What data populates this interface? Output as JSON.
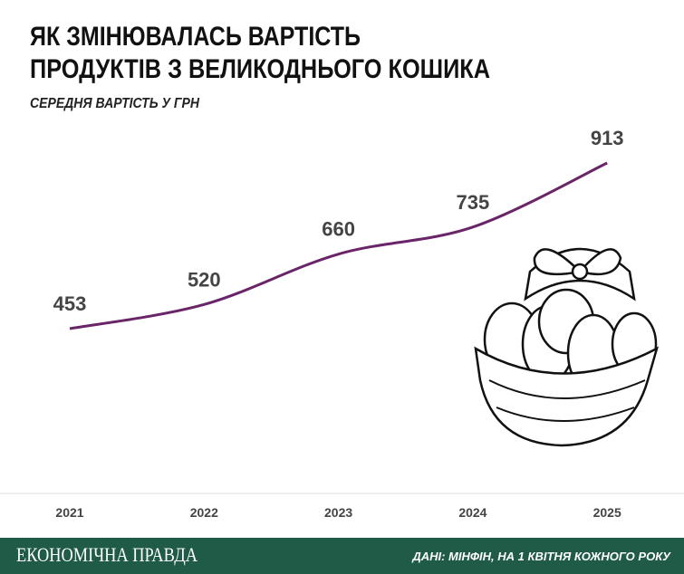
{
  "chart_data": {
    "type": "line",
    "title": [
      "ЯК ЗМІНЮВАЛАСЬ ВАРТІСТЬ",
      "ПРОДУКТІВ З ВЕЛИКОДНЬОГО КОШИКА"
    ],
    "subtitle": "СЕРЕДНЯ ВАРТІСТЬ У ГРН",
    "categories": [
      "2021",
      "2022",
      "2023",
      "2024",
      "2025"
    ],
    "values": [
      453,
      520,
      660,
      735,
      913
    ],
    "color": "#6a2468"
  },
  "footer": {
    "brand": "ЕКОНОМІЧНА ПРАВДА",
    "source": "ДАНІ: МІНФІН, НА 1 КВІТНЯ КОЖНОГО РОКУ"
  }
}
